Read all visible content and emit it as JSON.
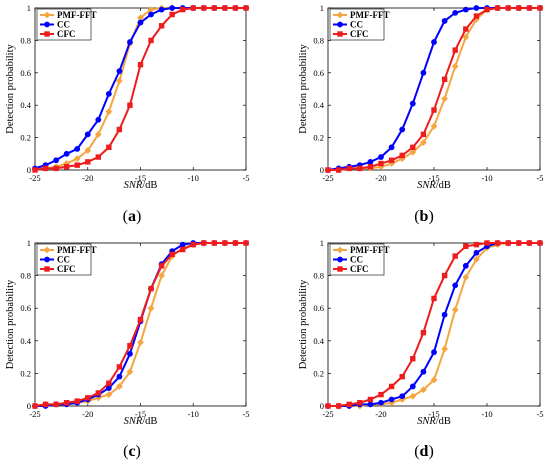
{
  "chart_data": [
    {
      "type": "line",
      "panel_label": "(a)",
      "xlabel": "SNR/dB",
      "ylabel": "Detection probability",
      "xlim": [
        -25,
        -5
      ],
      "ylim": [
        0,
        1
      ],
      "xticks": [
        -25,
        -20,
        -15,
        -10,
        -5
      ],
      "yticks": [
        0,
        0.2,
        0.4,
        0.6,
        0.8,
        1
      ],
      "legend_position": "top-left",
      "x": [
        -25,
        -24,
        -23,
        -22,
        -21,
        -20,
        -19,
        -18,
        -17,
        -16,
        -15,
        -14,
        -13,
        -12,
        -11,
        -10,
        -9,
        -8,
        -7,
        -6,
        -5
      ],
      "series": [
        {
          "name": "PMF-FFT",
          "color": "#f4a641",
          "marker": "diamond",
          "values": [
            0.01,
            0.01,
            0.02,
            0.04,
            0.07,
            0.12,
            0.22,
            0.36,
            0.55,
            0.78,
            0.94,
            0.99,
            1,
            1,
            1,
            1,
            1,
            1,
            1,
            1,
            1
          ]
        },
        {
          "name": "CC",
          "color": "#0000ff",
          "marker": "circle",
          "values": [
            0.01,
            0.03,
            0.06,
            0.1,
            0.13,
            0.22,
            0.31,
            0.47,
            0.61,
            0.79,
            0.91,
            0.96,
            0.99,
            1,
            1,
            1,
            1,
            1,
            1,
            1,
            1
          ]
        },
        {
          "name": "CFC",
          "color": "#ee1c1c",
          "marker": "square",
          "values": [
            0,
            0.01,
            0.01,
            0.02,
            0.03,
            0.05,
            0.08,
            0.14,
            0.25,
            0.4,
            0.65,
            0.8,
            0.89,
            0.96,
            0.99,
            1,
            1,
            1,
            1,
            1,
            1
          ]
        }
      ]
    },
    {
      "type": "line",
      "panel_label": "(b)",
      "xlabel": "SNR/dB",
      "ylabel": "Detection probability",
      "xlim": [
        -25,
        -5
      ],
      "ylim": [
        0,
        1
      ],
      "xticks": [
        -25,
        -20,
        -15,
        -10,
        -5
      ],
      "yticks": [
        0,
        0.2,
        0.4,
        0.6,
        0.8,
        1
      ],
      "legend_position": "top-left",
      "x": [
        -25,
        -24,
        -23,
        -22,
        -21,
        -20,
        -19,
        -18,
        -17,
        -16,
        -15,
        -14,
        -13,
        -12,
        -11,
        -10,
        -9,
        -8,
        -7,
        -6,
        -5
      ],
      "series": [
        {
          "name": "PMF-FFT",
          "color": "#f4a641",
          "marker": "diamond",
          "values": [
            0,
            0,
            0.01,
            0.01,
            0.01,
            0.02,
            0.04,
            0.07,
            0.11,
            0.17,
            0.27,
            0.44,
            0.64,
            0.82,
            0.93,
            0.99,
            1,
            1,
            1,
            1,
            1
          ]
        },
        {
          "name": "CC",
          "color": "#0000ff",
          "marker": "circle",
          "values": [
            0,
            0.01,
            0.02,
            0.03,
            0.05,
            0.08,
            0.14,
            0.25,
            0.41,
            0.6,
            0.79,
            0.92,
            0.97,
            0.99,
            1,
            1,
            1,
            1,
            1,
            1,
            1
          ]
        },
        {
          "name": "CFC",
          "color": "#ee1c1c",
          "marker": "square",
          "values": [
            0,
            0,
            0.01,
            0.01,
            0.02,
            0.04,
            0.06,
            0.09,
            0.14,
            0.22,
            0.37,
            0.56,
            0.74,
            0.87,
            0.95,
            0.99,
            1,
            1,
            1,
            1,
            1
          ]
        }
      ]
    },
    {
      "type": "line",
      "panel_label": "(c)",
      "xlabel": "SNR/dB",
      "ylabel": "Detection probability",
      "xlim": [
        -25,
        -5
      ],
      "ylim": [
        0,
        1
      ],
      "xticks": [
        -25,
        -20,
        -15,
        -10,
        -5
      ],
      "yticks": [
        0,
        0.2,
        0.4,
        0.6,
        0.8,
        1
      ],
      "legend_position": "top-left",
      "x": [
        -25,
        -24,
        -23,
        -22,
        -21,
        -20,
        -19,
        -18,
        -17,
        -16,
        -15,
        -14,
        -13,
        -12,
        -11,
        -10,
        -9,
        -8,
        -7,
        -6,
        -5
      ],
      "series": [
        {
          "name": "PMF-FFT",
          "color": "#f4a641",
          "marker": "diamond",
          "values": [
            0,
            0.01,
            0.01,
            0.01,
            0.02,
            0.03,
            0.05,
            0.07,
            0.12,
            0.21,
            0.39,
            0.6,
            0.8,
            0.92,
            0.97,
            0.99,
            1,
            1,
            1,
            1,
            1
          ]
        },
        {
          "name": "CC",
          "color": "#0000ff",
          "marker": "circle",
          "values": [
            0,
            0,
            0.01,
            0.01,
            0.02,
            0.04,
            0.07,
            0.11,
            0.18,
            0.32,
            0.52,
            0.72,
            0.87,
            0.95,
            0.99,
            1,
            1,
            1,
            1,
            1,
            1
          ]
        },
        {
          "name": "CFC",
          "color": "#ee1c1c",
          "marker": "square",
          "values": [
            0,
            0.01,
            0.01,
            0.02,
            0.03,
            0.05,
            0.08,
            0.14,
            0.24,
            0.37,
            0.53,
            0.72,
            0.86,
            0.93,
            0.96,
            0.99,
            1,
            1,
            1,
            1,
            1
          ]
        }
      ]
    },
    {
      "type": "line",
      "panel_label": "(d)",
      "xlabel": "SNR/dB",
      "ylabel": "Detection probability",
      "xlim": [
        -25,
        -5
      ],
      "ylim": [
        0,
        1
      ],
      "xticks": [
        -25,
        -20,
        -15,
        -10,
        -5
      ],
      "yticks": [
        0,
        0.2,
        0.4,
        0.6,
        0.8,
        1
      ],
      "legend_position": "top-left",
      "x": [
        -25,
        -24,
        -23,
        -22,
        -21,
        -20,
        -19,
        -18,
        -17,
        -16,
        -15,
        -14,
        -13,
        -12,
        -11,
        -10,
        -9,
        -8,
        -7,
        -6,
        -5
      ],
      "series": [
        {
          "name": "PMF-FFT",
          "color": "#f4a641",
          "marker": "diamond",
          "values": [
            0,
            0,
            0,
            0,
            0.01,
            0.01,
            0.02,
            0.04,
            0.06,
            0.1,
            0.16,
            0.35,
            0.59,
            0.79,
            0.9,
            0.97,
            0.99,
            1,
            1,
            1,
            1
          ]
        },
        {
          "name": "CC",
          "color": "#0000ff",
          "marker": "circle",
          "values": [
            0,
            0,
            0,
            0.01,
            0.01,
            0.02,
            0.04,
            0.06,
            0.12,
            0.21,
            0.33,
            0.56,
            0.74,
            0.86,
            0.94,
            0.98,
            1,
            1,
            1,
            1,
            1
          ]
        },
        {
          "name": "CFC",
          "color": "#ee1c1c",
          "marker": "square",
          "values": [
            0,
            0,
            0.01,
            0.02,
            0.04,
            0.07,
            0.12,
            0.18,
            0.29,
            0.45,
            0.66,
            0.8,
            0.92,
            0.98,
            0.99,
            1,
            1,
            1,
            1,
            1,
            1
          ]
        }
      ]
    }
  ]
}
